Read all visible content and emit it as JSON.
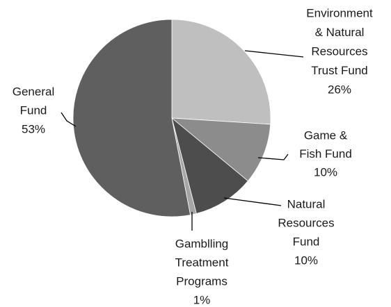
{
  "chart_data": {
    "type": "pie",
    "categories": [
      [
        "Environment",
        "& Natural",
        "Resources",
        "Trust Fund"
      ],
      [
        "Game &",
        "Fish Fund"
      ],
      [
        "Natural",
        "Resources",
        "Fund"
      ],
      [
        "Gamblling",
        "Treatment",
        "Programs"
      ],
      [
        "General",
        "Fund"
      ]
    ],
    "values": [
      26,
      10,
      10,
      1,
      53
    ],
    "value_labels": [
      "26%",
      "10%",
      "10%",
      "1%",
      "53%"
    ],
    "colors": [
      "#bfbfbf",
      "#8c8c8c",
      "#4d4d4d",
      "#a6a6a6",
      "#5f5f5f"
    ]
  }
}
